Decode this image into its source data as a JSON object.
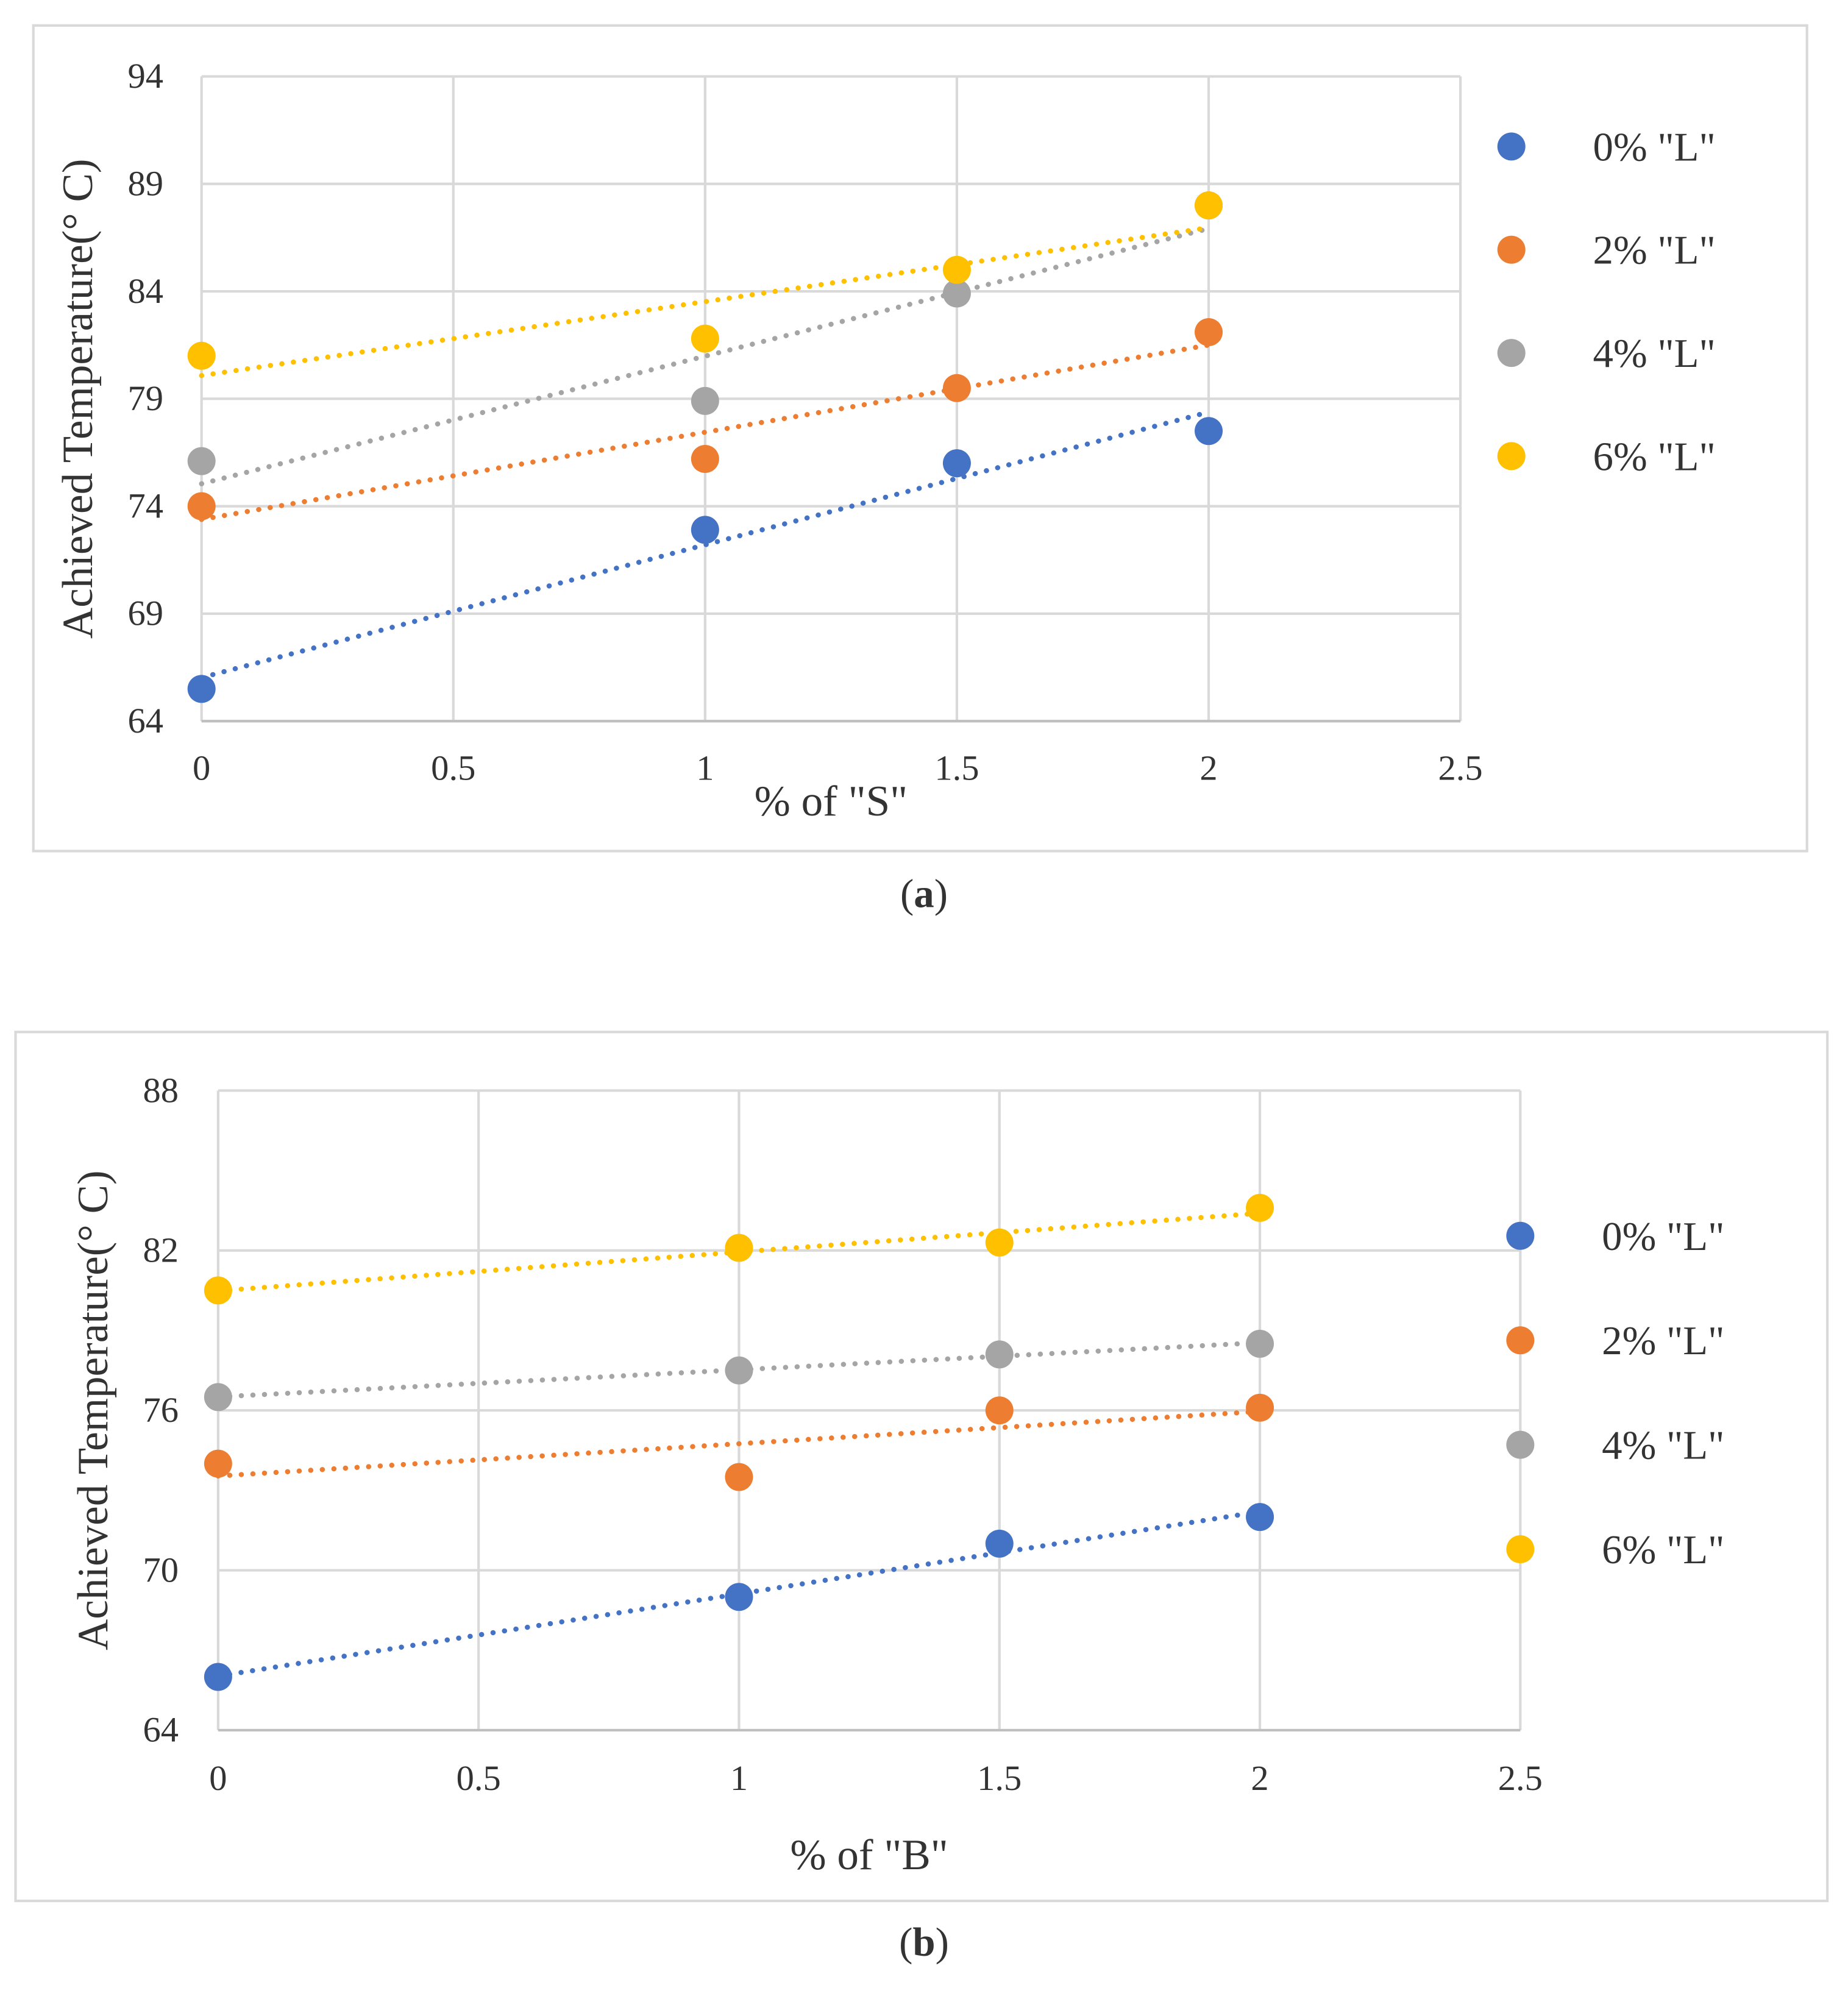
{
  "chart_data": [
    {
      "type": "scatter",
      "caption": "(a)",
      "caption_bold": "a",
      "xlabel": "% of \"S\"",
      "ylabel": "Achieved  Temperature(° C)",
      "xlim": [
        0,
        2.5
      ],
      "ylim": [
        64,
        94
      ],
      "xticks": [
        0,
        0.5,
        1,
        1.5,
        2,
        2.5
      ],
      "xtick_labels": [
        "0",
        "0.5",
        "1",
        "1.5",
        "2",
        "2.5"
      ],
      "yticks": [
        64,
        69,
        74,
        79,
        84,
        89,
        94
      ],
      "ytick_labels": [
        "64",
        "69",
        "74",
        "79",
        "84",
        "89",
        "94"
      ],
      "grid": true,
      "legend_position": "right",
      "trendline": "linear, dotted",
      "x": [
        0,
        1,
        1.5,
        2
      ],
      "series": [
        {
          "name": "0% \"L\"",
          "color": "#4472C4",
          "values": [
            65.5,
            72.9,
            76.0,
            77.5
          ]
        },
        {
          "name": "2% \"L\"",
          "color": "#ED7D31",
          "values": [
            74.0,
            76.2,
            79.5,
            82.1
          ]
        },
        {
          "name": "4% \"L\"",
          "color": "#A5A5A5",
          "values": [
            76.1,
            78.9,
            83.9,
            88.0
          ]
        },
        {
          "name": "6% \"L\"",
          "color": "#FFC000",
          "values": [
            81.0,
            81.8,
            85.0,
            88.0
          ]
        }
      ]
    },
    {
      "type": "scatter",
      "caption": "(b)",
      "caption_bold": "b",
      "xlabel": "% of \"B\"",
      "ylabel": "Achieved  Temperature(° C)",
      "xlim": [
        0,
        2.5
      ],
      "ylim": [
        64,
        88
      ],
      "xticks": [
        0,
        0.5,
        1,
        1.5,
        2,
        2.5
      ],
      "xtick_labels": [
        "0",
        "0.5",
        "1",
        "1.5",
        "2",
        "2.5"
      ],
      "yticks": [
        64,
        70,
        76,
        82,
        88
      ],
      "ytick_labels": [
        "64",
        "70",
        "76",
        "82",
        "88"
      ],
      "grid": true,
      "legend_position": "right",
      "trendline": "linear, dotted",
      "x": [
        0,
        1,
        1.5,
        2
      ],
      "series": [
        {
          "name": "0% \"L\"",
          "color": "#4472C4",
          "values": [
            66.0,
            69.0,
            71.0,
            72.0
          ]
        },
        {
          "name": "2% \"L\"",
          "color": "#ED7D31",
          "values": [
            74.0,
            73.5,
            76.0,
            76.1
          ]
        },
        {
          "name": "4% \"L\"",
          "color": "#A5A5A5",
          "values": [
            76.5,
            77.5,
            78.1,
            78.5
          ]
        },
        {
          "name": "6% \"L\"",
          "color": "#FFC000",
          "values": [
            80.5,
            82.1,
            82.3,
            83.6
          ]
        }
      ]
    }
  ]
}
